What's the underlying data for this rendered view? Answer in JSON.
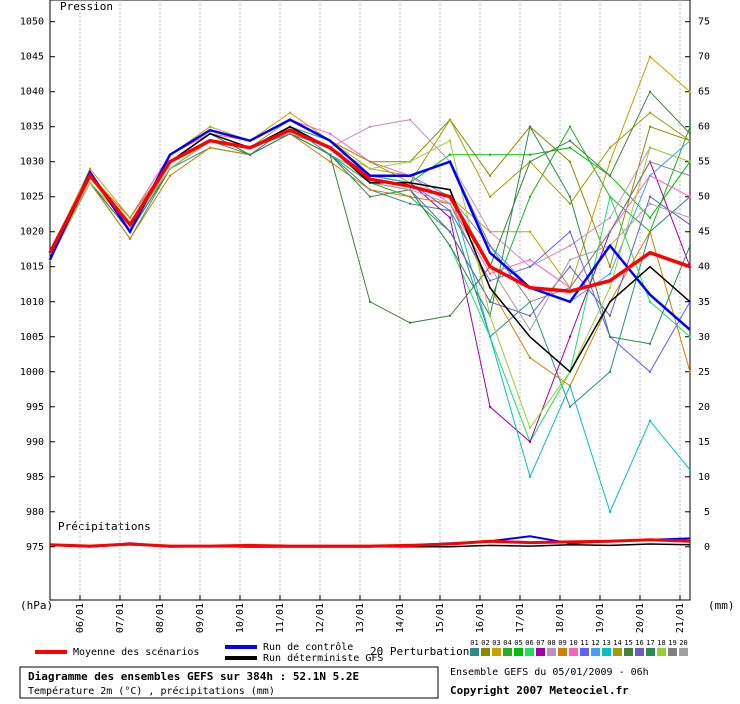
{
  "chart_data": {
    "type": "line",
    "pressure_label": "Pression",
    "precip_label": "Précipitations",
    "y_unit": "(hPa)",
    "y2_unit": "(mm)",
    "perturbations_label": "20 Perturbations",
    "title": "Diagramme des ensembles GEFS sur 384h : 52.1N 5.2E",
    "subtitle": "Température 2m (°C) , précipitations (mm)",
    "run_info": "Ensemble GEFS du 05/01/2009 - 06h",
    "copyright": "Copyright 2007 Meteociel.fr",
    "x": [
      0,
      24,
      48,
      72,
      96,
      120,
      144,
      168,
      192,
      216,
      240,
      264,
      288,
      312,
      336,
      360,
      384
    ],
    "xlim": [
      0,
      384
    ],
    "xticks": [
      {
        "value": 18,
        "label": "06/01"
      },
      {
        "value": 42,
        "label": "07/01"
      },
      {
        "value": 66,
        "label": "08/01"
      },
      {
        "value": 90,
        "label": "09/01"
      },
      {
        "value": 114,
        "label": "10/01"
      },
      {
        "value": 138,
        "label": "11/01"
      },
      {
        "value": 162,
        "label": "12/01"
      },
      {
        "value": 186,
        "label": "13/01"
      },
      {
        "value": 210,
        "label": "14/01"
      },
      {
        "value": 234,
        "label": "15/01"
      },
      {
        "value": 258,
        "label": "16/01"
      },
      {
        "value": 282,
        "label": "17/01"
      },
      {
        "value": 306,
        "label": "18/01"
      },
      {
        "value": 330,
        "label": "19/01"
      },
      {
        "value": 354,
        "label": "20/01"
      },
      {
        "value": 378,
        "label": "21/01"
      }
    ],
    "ylim": [
      967.4,
      1053.1
    ],
    "yticks": [
      975,
      980,
      985,
      990,
      995,
      1000,
      1005,
      1010,
      1015,
      1020,
      1025,
      1030,
      1035,
      1040,
      1045,
      1050
    ],
    "y2lim": [
      -7.6,
      78.1
    ],
    "y2ticks": [
      0,
      5,
      10,
      15,
      20,
      25,
      30,
      35,
      40,
      45,
      50,
      55,
      60,
      65,
      70,
      75
    ],
    "grid": true,
    "series": [
      {
        "name": "01",
        "color": "#2e8b8b",
        "line_width": 1,
        "values": [
          1016,
          1027,
          1019,
          1029,
          1032,
          1031,
          1035,
          1031,
          1026,
          1024,
          1023,
          1005,
          1010,
          995,
          1000,
          1020,
          1025
        ]
      },
      {
        "name": "02",
        "color": "#8b8b00",
        "line_width": 1,
        "values": [
          1017,
          1028,
          1022,
          1030,
          1034,
          1033,
          1036,
          1033,
          1030,
          1030,
          1036,
          1028,
          1035,
          1030,
          1015,
          1035,
          1033
        ]
      },
      {
        "name": "03",
        "color": "#c8a000",
        "line_width": 1,
        "values": [
          1017,
          1029,
          1022,
          1031,
          1035,
          1033,
          1037,
          1033,
          1029,
          1028,
          1025,
          1020,
          1020,
          1012,
          1030,
          1045,
          1040
        ]
      },
      {
        "name": "04",
        "color": "#20b020",
        "line_width": 1,
        "values": [
          1016,
          1027,
          1020,
          1029,
          1033,
          1032,
          1034,
          1031,
          1027,
          1025,
          1020,
          1010,
          1025,
          1035,
          1025,
          1020,
          1035
        ]
      },
      {
        "name": "05",
        "color": "#00c000",
        "line_width": 1,
        "values": [
          1017,
          1028,
          1021,
          1030,
          1033,
          1032,
          1035,
          1032,
          1028,
          1027,
          1031,
          1031,
          1031,
          1032,
          1028,
          1022,
          1030
        ]
      },
      {
        "name": "06",
        "color": "#20e060",
        "line_width": 1,
        "values": [
          1016,
          1028,
          1020,
          1030,
          1034,
          1031,
          1034,
          1032,
          1027,
          1026,
          1018,
          1005,
          990,
          1000,
          1025,
          1010,
          1005
        ]
      },
      {
        "name": "07",
        "color": "#a000a0",
        "line_width": 1,
        "values": [
          1017,
          1027,
          1021,
          1029,
          1033,
          1032,
          1035,
          1033,
          1028,
          1027,
          1022,
          995,
          990,
          1005,
          1020,
          1030,
          1015
        ]
      },
      {
        "name": "08",
        "color": "#c090c0",
        "line_width": 1,
        "values": [
          1017,
          1028,
          1021,
          1030,
          1034,
          1032,
          1035,
          1032,
          1035,
          1036,
          1030,
          1020,
          1015,
          1018,
          1022,
          1032,
          1030
        ]
      },
      {
        "name": "09",
        "color": "#d08000",
        "line_width": 1,
        "values": [
          1016,
          1027,
          1019,
          1028,
          1032,
          1031,
          1034,
          1030,
          1026,
          1025,
          1024,
          1012,
          1002,
          998,
          1010,
          1020,
          1000
        ]
      },
      {
        "name": "10",
        "color": "#ff60c0",
        "line_width": 1,
        "values": [
          1017,
          1028,
          1022,
          1031,
          1034,
          1033,
          1036,
          1034,
          1030,
          1028,
          1024,
          1014,
          1016,
          1012,
          1020,
          1028,
          1025
        ]
      },
      {
        "name": "11",
        "color": "#6060ff",
        "line_width": 1,
        "values": [
          1016,
          1028,
          1021,
          1030,
          1033,
          1032,
          1035,
          1032,
          1027,
          1027,
          1023,
          1013,
          1015,
          1020,
          1005,
          1000,
          1010
        ]
      },
      {
        "name": "12",
        "color": "#40a0ff",
        "line_width": 1,
        "values": [
          1017,
          1027,
          1020,
          1029,
          1033,
          1032,
          1034,
          1031,
          1028,
          1028,
          1025,
          1018,
          1012,
          1010,
          1014,
          1028,
          1033
        ]
      },
      {
        "name": "13",
        "color": "#00c0c0",
        "line_width": 1,
        "values": [
          1017,
          1028,
          1021,
          1030,
          1033,
          1032,
          1035,
          1033,
          1028,
          1027,
          1026,
          1005,
          985,
          998,
          980,
          993,
          986
        ]
      },
      {
        "name": "14",
        "color": "#a0a000",
        "line_width": 1,
        "values": [
          1016,
          1028,
          1022,
          1030,
          1034,
          1032,
          1036,
          1033,
          1030,
          1027,
          1036,
          1025,
          1030,
          1024,
          1032,
          1037,
          1033
        ]
      },
      {
        "name": "15",
        "color": "#408040",
        "line_width": 1,
        "values": [
          1016,
          1027,
          1020,
          1029,
          1033,
          1031,
          1034,
          1031,
          1010,
          1007,
          1008,
          1015,
          1030,
          1033,
          1028,
          1040,
          1034
        ]
      },
      {
        "name": "16",
        "color": "#6a5acd",
        "line_width": 1,
        "values": [
          1017,
          1028,
          1021,
          1030,
          1033,
          1032,
          1035,
          1032,
          1027,
          1026,
          1020,
          1010,
          1008,
          1015,
          1008,
          1025,
          1021
        ]
      },
      {
        "name": "17",
        "color": "#2e8b57",
        "line_width": 1,
        "values": [
          1017,
          1028,
          1021,
          1030,
          1034,
          1031,
          1034,
          1031,
          1025,
          1026,
          1018,
          1008,
          1035,
          1025,
          1005,
          1004,
          1018
        ]
      },
      {
        "name": "18",
        "color": "#9acd32",
        "line_width": 1,
        "values": [
          1016,
          1027,
          1021,
          1029,
          1033,
          1032,
          1035,
          1032,
          1029,
          1030,
          1033,
          1008,
          992,
          1000,
          1012,
          1032,
          1030
        ]
      },
      {
        "name": "19",
        "color": "#808080",
        "line_width": 1,
        "values": [
          1017,
          1028,
          1021,
          1030,
          1033,
          1032,
          1034,
          1032,
          1028,
          1028,
          1030,
          1018,
          1010,
          1012,
          1020,
          1030,
          1028
        ]
      },
      {
        "name": "20",
        "color": "#a0a0a0",
        "line_width": 1,
        "values": [
          1016,
          1028,
          1020,
          1030,
          1033,
          1032,
          1035,
          1032,
          1027,
          1026,
          1024,
          1015,
          1006,
          1016,
          1018,
          1024,
          1022
        ]
      },
      {
        "name": "Run déterministe GFS",
        "color": "#000000",
        "line_width": 1.5,
        "values": [
          1016,
          1028,
          1021,
          1030,
          1034,
          1032,
          1035,
          1032,
          1027,
          1027,
          1026,
          1012,
          1005,
          1000,
          1010,
          1015,
          1010
        ]
      },
      {
        "name": "Run de contrôle",
        "color": "#0000ff",
        "line_width": 2.5,
        "values": [
          1016,
          1028.5,
          1020,
          1031,
          1034.5,
          1033,
          1036,
          1033,
          1028,
          1028,
          1030,
          1017,
          1012,
          1010,
          1018,
          1011,
          1006
        ]
      },
      {
        "name": "Moyenne des scénarios",
        "color": "#ff0000",
        "line_width": 3.5,
        "values": [
          1017,
          1028,
          1021,
          1030,
          1033,
          1032,
          1034.5,
          1032,
          1027.5,
          1026.5,
          1025,
          1015,
          1012,
          1011.5,
          1013,
          1017,
          1015
        ]
      },
      {
        "axis": "y2",
        "color": "#000000",
        "line_width": 1.5,
        "values": [
          0.2,
          0,
          0.3,
          0,
          0,
          0,
          0,
          0,
          0,
          0,
          0,
          0.2,
          0.1,
          0.3,
          0.2,
          0.4,
          0.3
        ]
      },
      {
        "axis": "y2",
        "color": "#0000ff",
        "line_width": 2,
        "values": [
          0.3,
          0,
          0.5,
          0,
          0.1,
          0,
          0,
          0,
          0,
          0.2,
          0.5,
          0.8,
          1.5,
          0.5,
          0.8,
          1,
          1.2
        ]
      },
      {
        "axis": "y2",
        "color": "#ff0000",
        "line_width": 3,
        "values": [
          0.3,
          0.1,
          0.4,
          0.1,
          0.1,
          0.2,
          0.1,
          0.1,
          0.1,
          0.2,
          0.4,
          0.8,
          0.6,
          0.7,
          0.8,
          1,
          0.8
        ]
      }
    ]
  }
}
